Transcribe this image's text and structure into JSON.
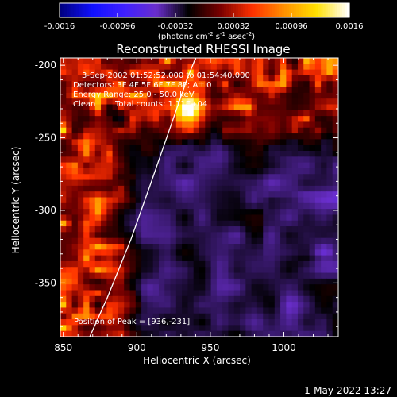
{
  "chart_data": {
    "type": "heatmap",
    "title": "Reconstructed RHESSI Image",
    "xlabel": "Heliocentric X (arcsec)",
    "ylabel": "Heliocentric Y (arcsec)",
    "xlim": [
      848,
      1037
    ],
    "ylim": [
      -387,
      -195
    ],
    "x_ticks": [
      850,
      900,
      950,
      1000
    ],
    "x_tick_labels": [
      "850",
      "900",
      "950",
      "1000"
    ],
    "y_ticks": [
      -200,
      -250,
      -300,
      -350
    ],
    "y_tick_labels": [
      "-200",
      "-250",
      "-300",
      "-350"
    ],
    "colorbar": {
      "range": [
        -0.0016,
        0.0016
      ],
      "ticks": [
        -0.0016,
        -0.00096,
        -0.00032,
        0.00032,
        0.00096,
        0.0016
      ],
      "tick_labels": [
        "-0.0016",
        "-0.00096",
        "-0.00032",
        "0.00032",
        "0.00096",
        "0.0016"
      ],
      "unit_main": "(photons cm",
      "unit_sup1": "-2",
      "unit_mid": " s",
      "unit_sup2": "-1",
      "unit_end": " asec",
      "unit_sup3": "-2",
      "unit_close": ")"
    },
    "colorscale": [
      "#000080",
      "#1010ff",
      "#4020ff",
      "#6a2ecc",
      "#000000",
      "#7a0000",
      "#ff3000",
      "#ff9000",
      "#ffe000",
      "#ffffff"
    ],
    "annotations": {
      "time": "3-Sep-2002 01:52:52.000 to 01:54:40.000",
      "detectors": "Detectors: 3F 4F 5F 6F 7F 8F; Att 0",
      "energy": "Energy Range: 25.0 - 50.0 keV",
      "clean_label": "Clean",
      "total_counts": "Total counts: 1.11E+04",
      "peak": "Position of Peak = [936,-231]"
    },
    "peak": {
      "x": 936,
      "y": -231
    },
    "limb_curve": [
      {
        "x": 868,
        "y": -387
      },
      {
        "x": 880,
        "y": -360
      },
      {
        "x": 896,
        "y": -320
      },
      {
        "x": 910,
        "y": -280
      },
      {
        "x": 922,
        "y": -245
      },
      {
        "x": 934,
        "y": -210
      },
      {
        "x": 940,
        "y": -195
      }
    ]
  },
  "footer": {
    "date": "1-May-2022 13:27"
  }
}
